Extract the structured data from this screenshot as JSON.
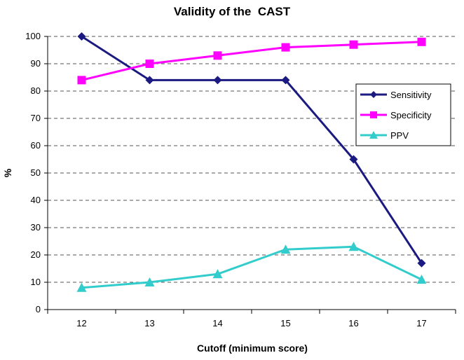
{
  "chart_data": {
    "type": "line",
    "title": "Validity of the  CAST",
    "xlabel": "Cutoff (minimum score)",
    "ylabel": "%",
    "x": [
      12,
      13,
      14,
      15,
      16,
      17
    ],
    "x_tick_labels": [
      "12",
      "13",
      "14",
      "15",
      "16",
      "17"
    ],
    "ylim": [
      0,
      100
    ],
    "y_tick_labels": [
      "0",
      "10",
      "20",
      "30",
      "40",
      "50",
      "60",
      "70",
      "80",
      "90",
      "100"
    ],
    "grid": "horizontal-dashed",
    "legend_position": "right",
    "series": [
      {
        "name": "Sensitivity",
        "values": [
          100,
          84,
          84,
          84,
          55,
          17
        ],
        "color": "#1a1a80",
        "marker": "diamond"
      },
      {
        "name": "Specificity",
        "values": [
          84,
          90,
          93,
          96,
          97,
          98
        ],
        "color": "#ff00ff",
        "marker": "square"
      },
      {
        "name": "PPV",
        "values": [
          8,
          10,
          13,
          22,
          23,
          11
        ],
        "color": "#33cccc",
        "marker": "triangle"
      }
    ]
  }
}
